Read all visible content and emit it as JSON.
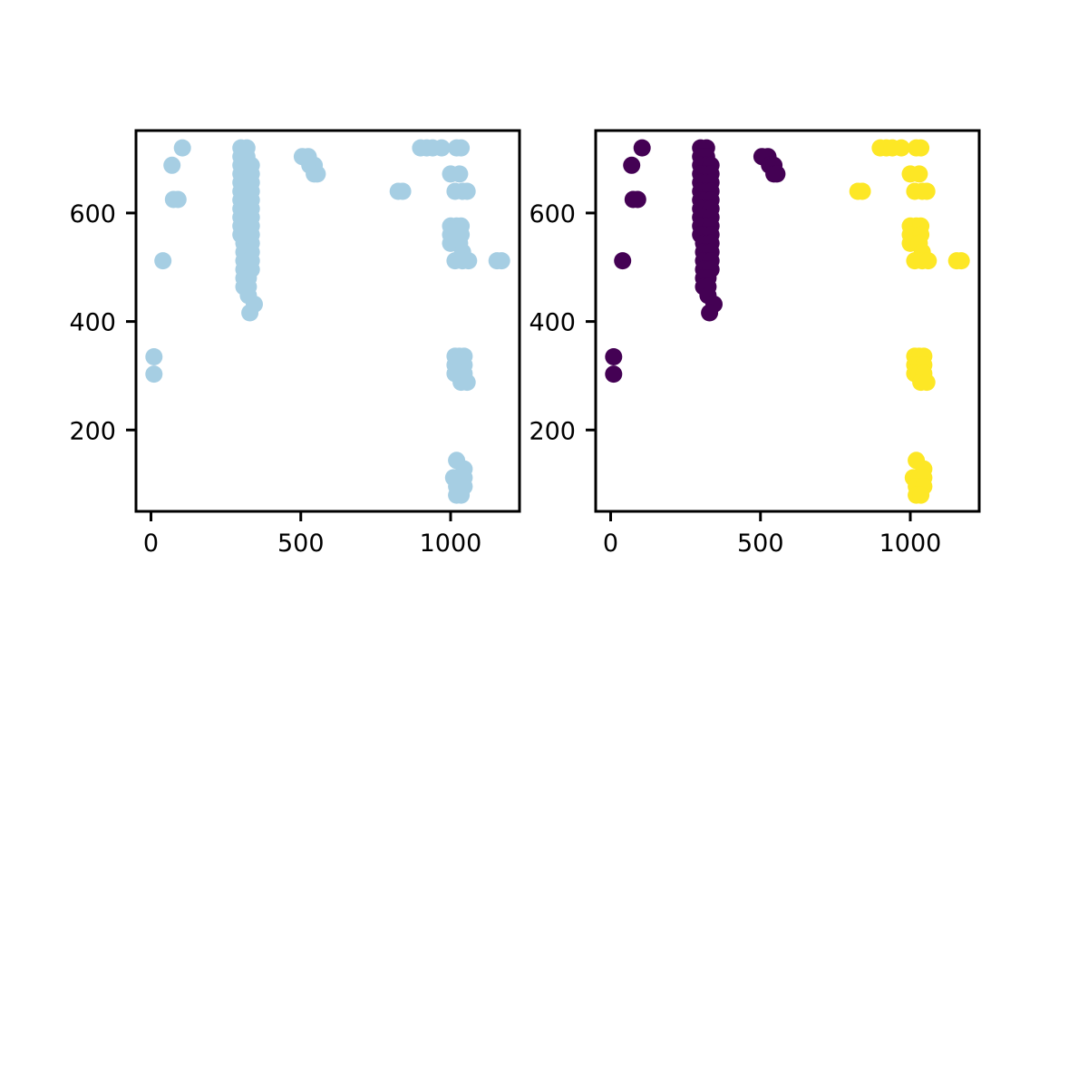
{
  "chart_data": [
    {
      "type": "scatter",
      "panel": "left",
      "color": "#a6cee3",
      "xlim": [
        -50,
        1230
      ],
      "ylim": [
        50,
        752
      ],
      "xticks": [
        0,
        500,
        1000
      ],
      "yticks": [
        200,
        400,
        600
      ],
      "xtick_labels": [
        "0",
        "500",
        "1000"
      ],
      "ytick_labels": [
        "200",
        "400",
        "600"
      ],
      "grid": false,
      "series": [
        {
          "points": [
            [
              105,
              720
            ],
            [
              70,
              688
            ],
            [
              75,
              625
            ],
            [
              90,
              625
            ],
            [
              40,
              512
            ],
            [
              10,
              335
            ],
            [
              10,
              303
            ],
            [
              300,
              720
            ],
            [
              320,
              720
            ],
            [
              300,
              704
            ],
            [
              320,
              704
            ],
            [
              300,
              688
            ],
            [
              320,
              688
            ],
            [
              335,
              688
            ],
            [
              300,
              672
            ],
            [
              320,
              672
            ],
            [
              335,
              672
            ],
            [
              300,
              656
            ],
            [
              320,
              656
            ],
            [
              335,
              656
            ],
            [
              300,
              640
            ],
            [
              320,
              640
            ],
            [
              335,
              640
            ],
            [
              300,
              624
            ],
            [
              320,
              624
            ],
            [
              335,
              624
            ],
            [
              300,
              608
            ],
            [
              320,
              608
            ],
            [
              335,
              608
            ],
            [
              300,
              592
            ],
            [
              320,
              592
            ],
            [
              335,
              592
            ],
            [
              300,
              576
            ],
            [
              320,
              576
            ],
            [
              335,
              576
            ],
            [
              300,
              560
            ],
            [
              320,
              560
            ],
            [
              335,
              560
            ],
            [
              310,
              544
            ],
            [
              325,
              544
            ],
            [
              335,
              544
            ],
            [
              310,
              528
            ],
            [
              325,
              528
            ],
            [
              335,
              528
            ],
            [
              310,
              512
            ],
            [
              325,
              512
            ],
            [
              335,
              512
            ],
            [
              310,
              496
            ],
            [
              325,
              496
            ],
            [
              335,
              496
            ],
            [
              310,
              480
            ],
            [
              325,
              480
            ],
            [
              310,
              464
            ],
            [
              325,
              464
            ],
            [
              325,
              448
            ],
            [
              345,
              432
            ],
            [
              330,
              416
            ],
            [
              505,
              704
            ],
            [
              525,
              704
            ],
            [
              530,
              688
            ],
            [
              545,
              688
            ],
            [
              545,
              672
            ],
            [
              555,
              672
            ],
            [
              900,
              720
            ],
            [
              920,
              720
            ],
            [
              940,
              720
            ],
            [
              970,
              720
            ],
            [
              1020,
              720
            ],
            [
              1035,
              720
            ],
            [
              825,
              640
            ],
            [
              840,
              640
            ],
            [
              1000,
              672
            ],
            [
              1030,
              672
            ],
            [
              1015,
              640
            ],
            [
              1040,
              640
            ],
            [
              1055,
              640
            ],
            [
              1000,
              576
            ],
            [
              1020,
              576
            ],
            [
              1035,
              576
            ],
            [
              1000,
              560
            ],
            [
              1035,
              560
            ],
            [
              1000,
              544
            ],
            [
              1030,
              544
            ],
            [
              1040,
              528
            ],
            [
              1015,
              512
            ],
            [
              1040,
              512
            ],
            [
              1060,
              512
            ],
            [
              1155,
              512
            ],
            [
              1170,
              512
            ],
            [
              1015,
              336
            ],
            [
              1030,
              336
            ],
            [
              1045,
              336
            ],
            [
              1015,
              320
            ],
            [
              1030,
              320
            ],
            [
              1045,
              320
            ],
            [
              1015,
              304
            ],
            [
              1030,
              304
            ],
            [
              1045,
              304
            ],
            [
              1035,
              288
            ],
            [
              1055,
              288
            ],
            [
              1020,
              144
            ],
            [
              1045,
              128
            ],
            [
              1010,
              112
            ],
            [
              1030,
              112
            ],
            [
              1045,
              112
            ],
            [
              1020,
              96
            ],
            [
              1045,
              96
            ],
            [
              1020,
              80
            ],
            [
              1035,
              80
            ]
          ]
        }
      ]
    },
    {
      "type": "scatter",
      "panel": "right",
      "colors": {
        "cluster_a": "#440154",
        "cluster_b": "#fde725"
      },
      "xlim": [
        -50,
        1230
      ],
      "ylim": [
        50,
        752
      ],
      "xticks": [
        0,
        500,
        1000
      ],
      "yticks": [
        200,
        400,
        600
      ],
      "xtick_labels": [
        "0",
        "500",
        "1000"
      ],
      "ytick_labels": [
        "200",
        "400",
        "600"
      ],
      "grid": false,
      "series": [
        {
          "color_key": "cluster_a",
          "points": [
            [
              105,
              720
            ],
            [
              70,
              688
            ],
            [
              75,
              625
            ],
            [
              90,
              625
            ],
            [
              40,
              512
            ],
            [
              10,
              335
            ],
            [
              10,
              303
            ],
            [
              300,
              720
            ],
            [
              320,
              720
            ],
            [
              300,
              704
            ],
            [
              320,
              704
            ],
            [
              300,
              688
            ],
            [
              320,
              688
            ],
            [
              335,
              688
            ],
            [
              300,
              672
            ],
            [
              320,
              672
            ],
            [
              335,
              672
            ],
            [
              300,
              656
            ],
            [
              320,
              656
            ],
            [
              335,
              656
            ],
            [
              300,
              640
            ],
            [
              320,
              640
            ],
            [
              335,
              640
            ],
            [
              300,
              624
            ],
            [
              320,
              624
            ],
            [
              335,
              624
            ],
            [
              300,
              608
            ],
            [
              320,
              608
            ],
            [
              335,
              608
            ],
            [
              300,
              592
            ],
            [
              320,
              592
            ],
            [
              335,
              592
            ],
            [
              300,
              576
            ],
            [
              320,
              576
            ],
            [
              335,
              576
            ],
            [
              300,
              560
            ],
            [
              320,
              560
            ],
            [
              335,
              560
            ],
            [
              310,
              544
            ],
            [
              325,
              544
            ],
            [
              335,
              544
            ],
            [
              310,
              528
            ],
            [
              325,
              528
            ],
            [
              335,
              528
            ],
            [
              310,
              512
            ],
            [
              325,
              512
            ],
            [
              335,
              512
            ],
            [
              310,
              496
            ],
            [
              325,
              496
            ],
            [
              335,
              496
            ],
            [
              310,
              480
            ],
            [
              325,
              480
            ],
            [
              310,
              464
            ],
            [
              325,
              464
            ],
            [
              325,
              448
            ],
            [
              345,
              432
            ],
            [
              330,
              416
            ],
            [
              505,
              704
            ],
            [
              525,
              704
            ],
            [
              530,
              688
            ],
            [
              545,
              688
            ],
            [
              545,
              672
            ],
            [
              555,
              672
            ]
          ]
        },
        {
          "color_key": "cluster_b",
          "points": [
            [
              900,
              720
            ],
            [
              920,
              720
            ],
            [
              940,
              720
            ],
            [
              970,
              720
            ],
            [
              1020,
              720
            ],
            [
              1035,
              720
            ],
            [
              825,
              640
            ],
            [
              840,
              640
            ],
            [
              1000,
              672
            ],
            [
              1030,
              672
            ],
            [
              1015,
              640
            ],
            [
              1040,
              640
            ],
            [
              1055,
              640
            ],
            [
              1000,
              576
            ],
            [
              1020,
              576
            ],
            [
              1035,
              576
            ],
            [
              1000,
              560
            ],
            [
              1035,
              560
            ],
            [
              1000,
              544
            ],
            [
              1030,
              544
            ],
            [
              1040,
              528
            ],
            [
              1015,
              512
            ],
            [
              1040,
              512
            ],
            [
              1060,
              512
            ],
            [
              1155,
              512
            ],
            [
              1170,
              512
            ],
            [
              1015,
              336
            ],
            [
              1030,
              336
            ],
            [
              1045,
              336
            ],
            [
              1015,
              320
            ],
            [
              1030,
              320
            ],
            [
              1045,
              320
            ],
            [
              1015,
              304
            ],
            [
              1030,
              304
            ],
            [
              1045,
              304
            ],
            [
              1035,
              288
            ],
            [
              1055,
              288
            ],
            [
              1020,
              144
            ],
            [
              1045,
              128
            ],
            [
              1010,
              112
            ],
            [
              1030,
              112
            ],
            [
              1045,
              112
            ],
            [
              1020,
              96
            ],
            [
              1045,
              96
            ],
            [
              1020,
              80
            ],
            [
              1035,
              80
            ]
          ]
        }
      ]
    }
  ]
}
